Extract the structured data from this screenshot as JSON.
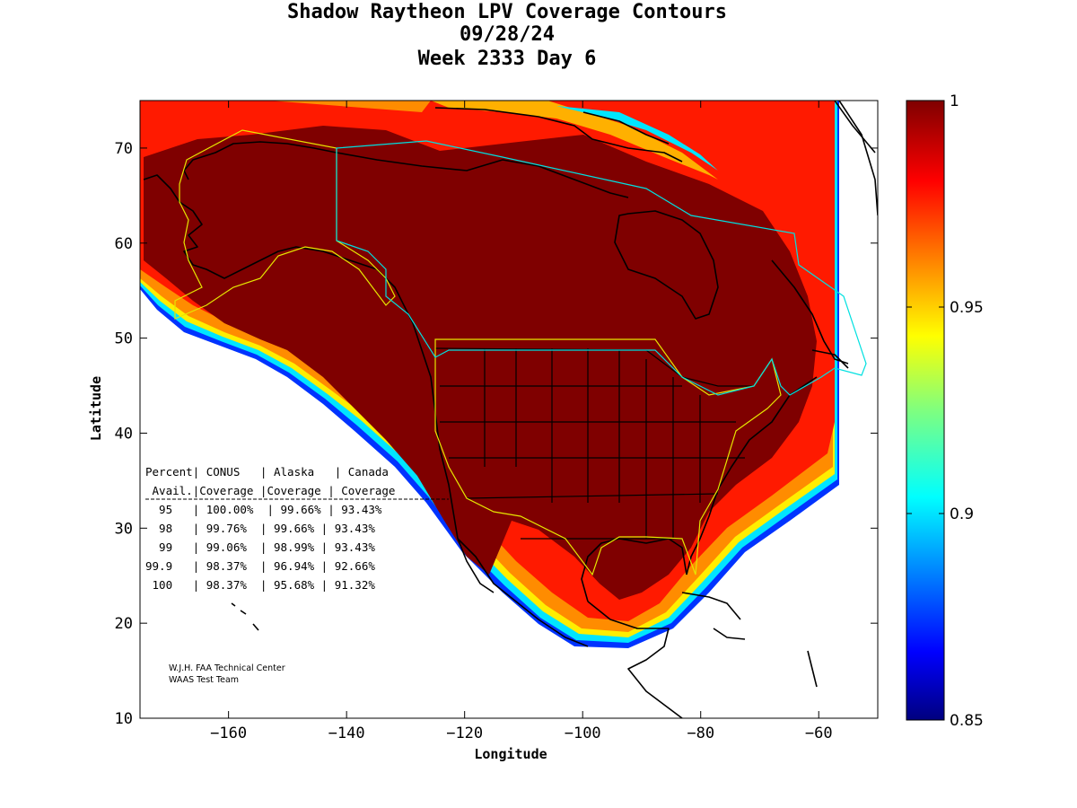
{
  "title": {
    "line1": "Shadow Raytheon LPV Coverage Contours",
    "line2": "09/28/24",
    "line3": "Week 2333 Day 6"
  },
  "axes": {
    "xlabel": "Longitude",
    "ylabel": "Latitude",
    "xlim": [
      -175,
      -50
    ],
    "ylim": [
      10,
      75
    ],
    "xticks": [
      -160,
      -140,
      -120,
      -100,
      -80,
      -60
    ],
    "yticks": [
      10,
      20,
      30,
      40,
      50,
      60,
      70
    ]
  },
  "colorbar": {
    "min": 0.85,
    "max": 1,
    "ticks": [
      "1",
      "0.95",
      "0.9",
      "0.85"
    ],
    "colormap": "jet"
  },
  "table": {
    "header1": "Percent| CONUS   | Alaska   | Canada",
    "header2": " Avail.|Coverage |Coverage | Coverage",
    "rows": [
      "  95   | 100.00%  | 99.66% | 93.43%",
      "  98   | 99.76%  | 99.66% | 93.43%",
      "  99   | 99.06%  | 98.99% | 93.43%",
      "99.9   | 98.37%  | 96.94% | 92.66%",
      " 100   | 98.37%  | 95.68% | 91.32%"
    ]
  },
  "credits": {
    "line1": "W.J.H. FAA Technical Center",
    "line2": "WAAS Test Team"
  },
  "colors": {
    "dark_red": "#7f0000",
    "red": "#ff1a00",
    "orange": "#ff8c00",
    "yellow": "#ffee00",
    "cyan": "#00e5ff",
    "blue": "#0033ff",
    "navy": "#000080",
    "service_boundary": "#e6e600",
    "fir_boundary": "#00e0e0"
  }
}
